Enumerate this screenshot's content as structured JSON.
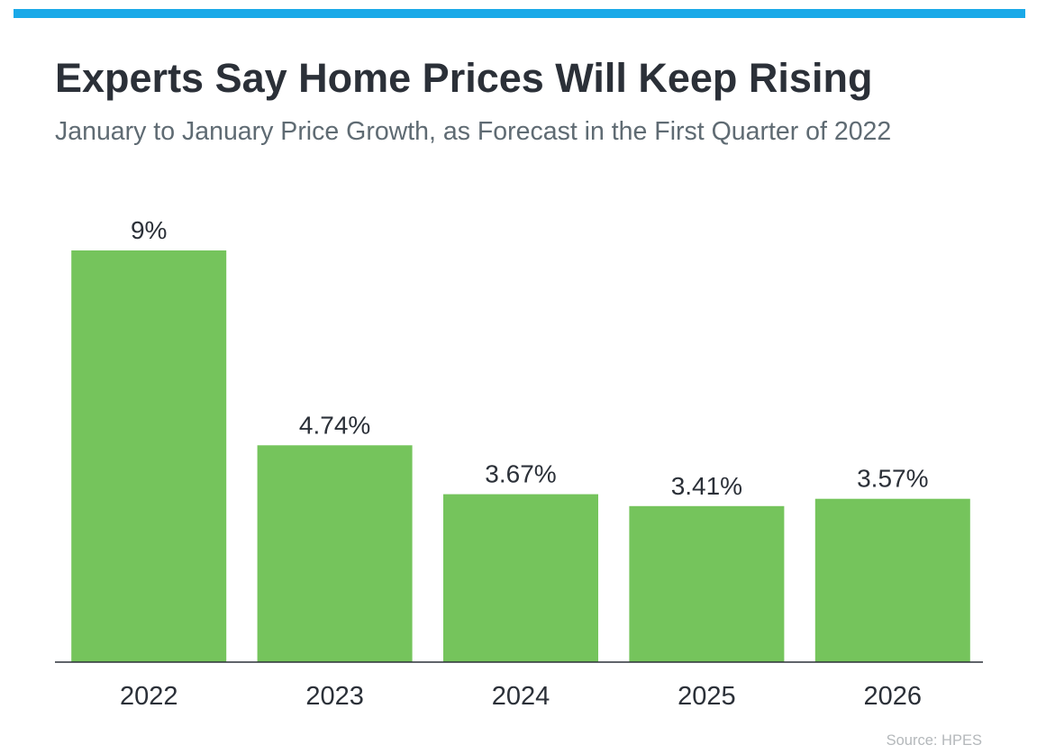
{
  "colors": {
    "accent": "#1aa9e8",
    "bar": "#75c45c",
    "axis": "#2b3038"
  },
  "title": "Experts Say Home Prices Will Keep Rising",
  "subtitle": "January to January Price Growth, as Forecast in the First Quarter of 2022",
  "source": "Source: HPES",
  "chart_data": {
    "type": "bar",
    "title": "Experts Say Home Prices Will Keep Rising",
    "subtitle": "January to January Price Growth, as Forecast in the First Quarter of 2022",
    "categories": [
      "2022",
      "2023",
      "2024",
      "2025",
      "2026"
    ],
    "values": [
      9,
      4.74,
      3.67,
      3.41,
      3.57
    ],
    "data_labels": [
      "9%",
      "4.74%",
      "3.67%",
      "3.41%",
      "3.57%"
    ],
    "xlabel": "",
    "ylabel": "",
    "ylim": [
      0,
      9
    ],
    "grid": false,
    "legend": "none"
  }
}
